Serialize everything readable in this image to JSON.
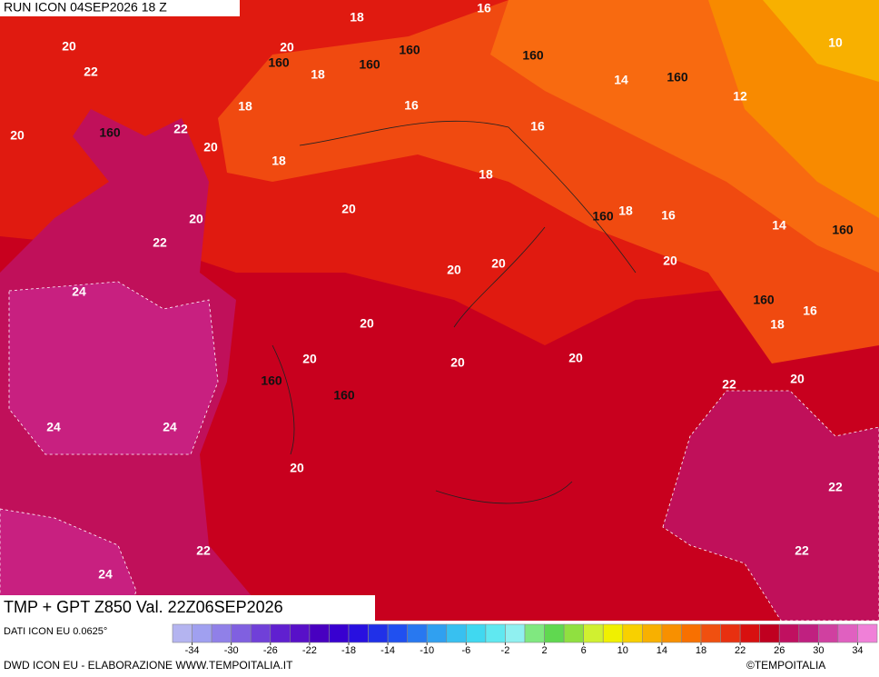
{
  "header": {
    "run": "RUN ICON 04SEP2026 18 Z"
  },
  "footer": {
    "title": "TMP + GPT Z850 Val. 22Z06SEP2026",
    "data_source": "DATI ICON EU 0.0625°",
    "credit": "DWD ICON EU - ELABORAZIONE WWW.TEMPOITALIA.IT",
    "copyright": "©TEMPOITALIA"
  },
  "contour_labels": [
    18,
    16,
    20,
    20,
    160,
    160,
    160,
    160,
    10,
    22,
    18,
    14,
    160,
    12,
    18,
    16,
    22,
    20,
    160,
    20,
    16,
    18,
    18,
    160,
    18,
    16,
    14,
    160,
    20,
    20,
    22,
    20,
    20,
    20,
    24,
    160,
    16,
    18,
    20,
    20,
    20,
    20,
    160,
    160,
    20,
    22,
    24,
    24,
    20,
    22,
    22,
    22,
    24
  ],
  "colorbar": {
    "colors": [
      "#b4b4f0",
      "#a0a0f0",
      "#9080e8",
      "#8060e0",
      "#7040d8",
      "#6020d0",
      "#5810c8",
      "#4800c0",
      "#3800d0",
      "#2810e0",
      "#2030e8",
      "#2050f0",
      "#2878f0",
      "#30a0f0",
      "#38c0f0",
      "#40d8f0",
      "#60e8f0",
      "#90f0f0",
      "#80e880",
      "#60d850",
      "#90e040",
      "#d0f030",
      "#f0f000",
      "#f8d000",
      "#f8b000",
      "#f89000",
      "#f87000",
      "#f05010",
      "#e83010",
      "#d81010",
      "#c00020",
      "#c01060",
      "#c02080",
      "#d040a0",
      "#e060c0",
      "#f080d8"
    ],
    "ticks": [
      -34,
      -30,
      -26,
      -22,
      -18,
      -14,
      -10,
      -6,
      -2,
      2,
      6,
      10,
      14,
      18,
      22,
      26,
      30,
      34
    ]
  }
}
